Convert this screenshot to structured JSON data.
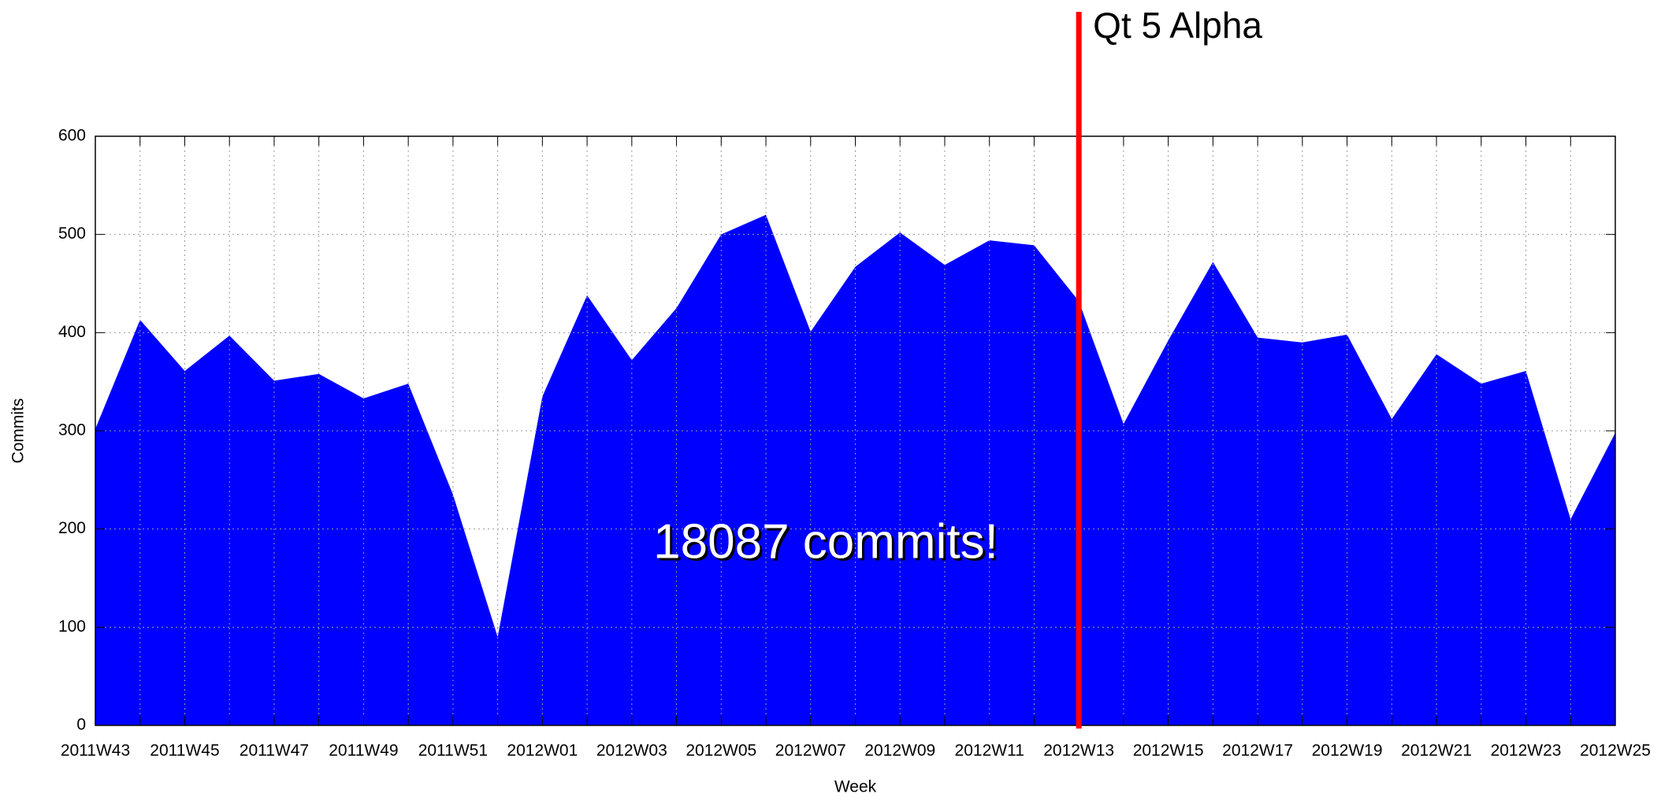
{
  "chart_data": {
    "type": "area",
    "annotations": [
      {
        "text": "Qt 5 Alpha",
        "x": "2012W13",
        "color": "#ff0000"
      },
      {
        "text": "18087 commits!"
      }
    ],
    "xlabel": "Week",
    "ylabel": "Commits",
    "categories": [
      "2011W43",
      null,
      "2011W45",
      null,
      "2011W47",
      null,
      "2011W49",
      null,
      "2011W51",
      null,
      "2012W01",
      null,
      "2012W03",
      null,
      "2012W05",
      null,
      "2012W07",
      null,
      "2012W09",
      null,
      "2012W11",
      null,
      "2012W13",
      null,
      "2012W15",
      null,
      "2012W17",
      null,
      "2012W19",
      null,
      "2012W21",
      null,
      "2012W23",
      null,
      "2012W25"
    ],
    "series": [
      {
        "name": "Commits",
        "color": "#0000ff",
        "values": [
          302,
          413,
          361,
          397,
          351,
          358,
          333,
          348,
          235,
          90,
          335,
          438,
          372,
          425,
          500,
          520,
          401,
          467,
          502,
          469,
          494,
          489,
          432,
          307,
          392,
          472,
          395,
          390,
          398,
          312,
          378,
          348,
          361,
          210,
          298
        ]
      }
    ],
    "ylim": [
      0,
      600
    ],
    "yticks": [
      0,
      100,
      200,
      300,
      400,
      500,
      600
    ],
    "grid": true
  }
}
